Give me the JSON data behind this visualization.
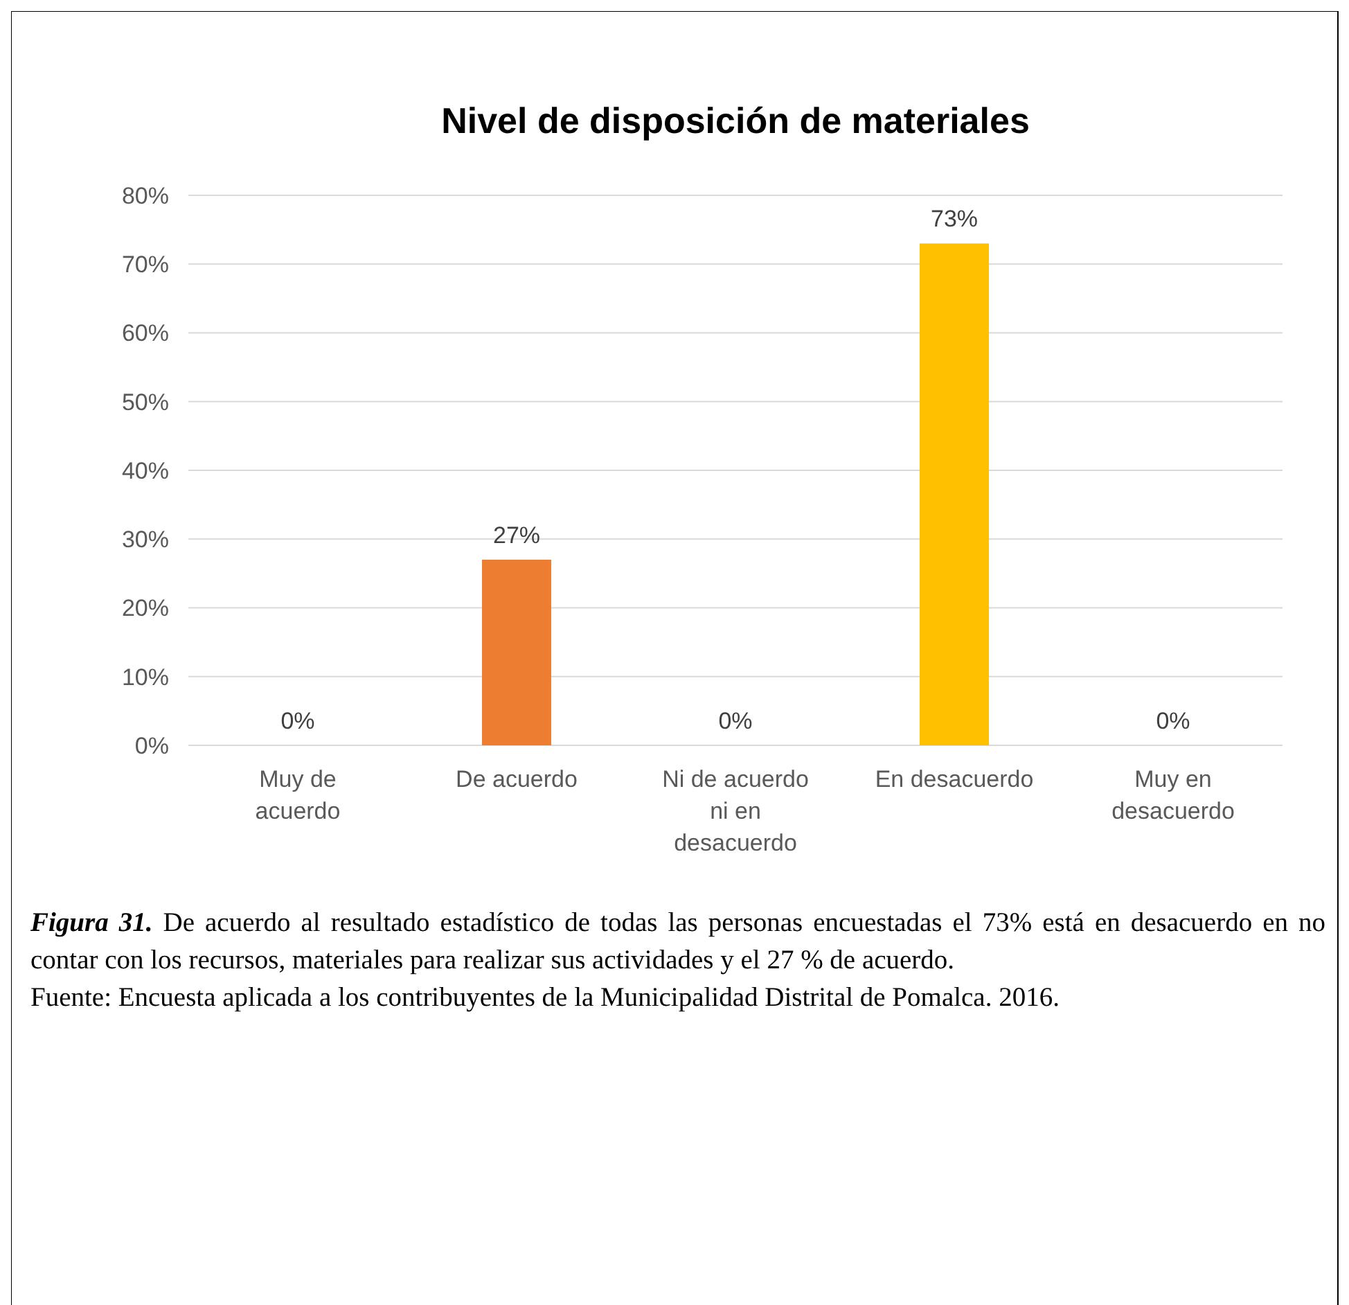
{
  "chart_data": {
    "type": "bar",
    "title": "Nivel de disposición de materiales",
    "categories": [
      "Muy de acuerdo",
      "De acuerdo",
      "Ni de acuerdo ni en desacuerdo",
      "En desacuerdo",
      "Muy en desacuerdo"
    ],
    "values": [
      0,
      27,
      0,
      73,
      0
    ],
    "colors": [
      "#4472c4",
      "#ed7d31",
      "#a5a5a5",
      "#ffc000",
      "#5b9bd5"
    ],
    "value_labels": [
      "0%",
      "27%",
      "0%",
      "73%",
      "0%"
    ],
    "ylim": [
      0,
      80
    ],
    "yticks": [
      {
        "value": 0,
        "label": "0%"
      },
      {
        "value": 10,
        "label": "10%"
      },
      {
        "value": 20,
        "label": "20%"
      },
      {
        "value": 30,
        "label": "30%"
      },
      {
        "value": 40,
        "label": "40%"
      },
      {
        "value": 50,
        "label": "50%"
      },
      {
        "value": 60,
        "label": "60%"
      },
      {
        "value": 70,
        "label": "70%"
      },
      {
        "value": 80,
        "label": "80%"
      }
    ],
    "grid": "y",
    "annotations": [
      "Figura 31. De acuerdo al resultado estadístico de todas las personas encuestadas el 73% está en desacuerdo en no contar con los recursos, materiales para realizar sus actividades y el 27 % de acuerdo.",
      "Fuente: Encuesta aplicada a los contribuyentes de la Municipalidad Distrital de Pomalca. 2016."
    ]
  }
}
